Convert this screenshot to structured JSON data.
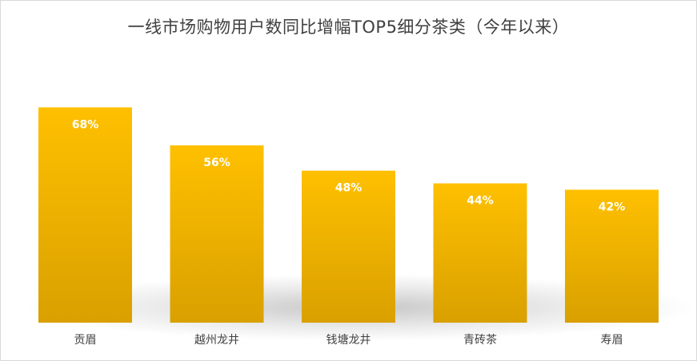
{
  "chart_data": {
    "type": "bar",
    "title": "一线市场购物用户数同比增幅TOP5细分茶类（今年以来）",
    "categories": [
      "贡眉",
      "越州龙井",
      "钱塘龙井",
      "青砖茶",
      "寿眉"
    ],
    "values": [
      68,
      56,
      48,
      44,
      42
    ],
    "value_labels": [
      "68%",
      "56%",
      "48%",
      "44%",
      "42%"
    ],
    "ylim": [
      0,
      84
    ],
    "xlabel": "",
    "ylabel": "",
    "grid": false,
    "legend": "none",
    "colors": {
      "bar_top": "#FFC000",
      "bar_bottom": "#D9A000",
      "label": "#FFFFFF",
      "text": "#404040"
    }
  }
}
